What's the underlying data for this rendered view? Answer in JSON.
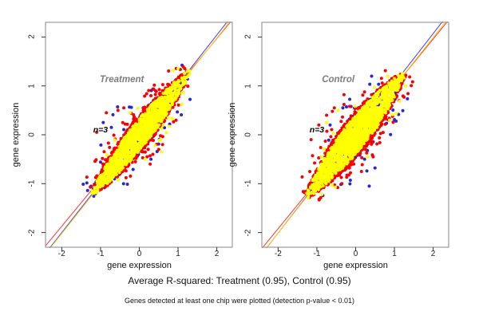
{
  "figure": {
    "captions": {
      "rsquared": "Average R-squared: Treatment (0.95), Control (0.95)",
      "footnote": "Genes detected at least one chip were plotted (detection p-value < 0.01)"
    },
    "colors": {
      "background": "#ffffff",
      "box": "#999999",
      "tick": "#333333",
      "title_gray": "#7d7d7d",
      "annotation": "#000000",
      "dot_red": "#fb0000",
      "dot_blue": "#2727d8",
      "dot_yellow": "#ffff00",
      "line_red": "#ff3232",
      "line_blue": "#3b3bff",
      "line_yellow": "#ffd400"
    }
  },
  "chart_data": [
    {
      "type": "scatter",
      "title": "Treatment",
      "title_pos": {
        "x": -0.45,
        "y": 1.08
      },
      "xlabel": "gene expression",
      "ylabel": "gene expression",
      "xlim": [
        -2.42,
        2.4
      ],
      "ylim": [
        -2.3,
        2.3
      ],
      "xticks": [
        -2,
        -1,
        0,
        1,
        2
      ],
      "yticks": [
        -2,
        -1,
        0,
        1,
        2
      ],
      "grid": false,
      "annotation": {
        "text": "n=3",
        "x": -1.0,
        "y": 0.05
      },
      "lines": [
        {
          "name": "fit-red",
          "color": "#ff3232",
          "slope": 0.96,
          "intercept": 0.05
        },
        {
          "name": "fit-blue",
          "color": "#3b3bff",
          "slope": 1.01,
          "intercept": 0.02
        },
        {
          "name": "fit-yellow",
          "color": "#ffd400",
          "slope": 1.0,
          "intercept": -0.02
        }
      ],
      "cloud": {
        "seed": 11,
        "t_min": -1.28,
        "t_max": 1.32,
        "center": 0.02,
        "taper": 1.4,
        "max_halfwidth": 0.27,
        "under_points": 300,
        "rim_points": 700,
        "core_points": 1300,
        "rim_upper_frac": 0.62,
        "outliers": {
          "red": 55,
          "blue": 20,
          "yellow": 14
        },
        "outlier_spread": {
          "red": 0.22,
          "blue": 0.28,
          "yellow": 0.18
        }
      },
      "extra_points": {
        "blue": [
          [
            -0.56,
            0.57
          ],
          [
            -0.68,
            0.41
          ],
          [
            -0.93,
            0.25
          ],
          [
            -0.99,
            -0.21
          ],
          [
            -0.47,
            -0.25
          ],
          [
            -0.37,
            -0.66
          ],
          [
            -0.16,
            -0.71
          ],
          [
            0.5,
            -0.19
          ],
          [
            0.3,
            -0.5
          ],
          [
            -0.72,
            0.15
          ]
        ],
        "red": [
          [
            0.2,
            -0.45
          ],
          [
            0.35,
            -0.4
          ],
          [
            0.5,
            -0.3
          ],
          [
            0.28,
            -0.6
          ],
          [
            0.1,
            -0.35
          ],
          [
            0.6,
            -0.2
          ],
          [
            -0.1,
            -0.55
          ],
          [
            -0.55,
            0.5
          ],
          [
            -0.4,
            0.55
          ],
          [
            0.1,
            0.55
          ],
          [
            -1.1,
            0.05
          ],
          [
            -0.85,
            0.45
          ],
          [
            0.42,
            0.9
          ],
          [
            0.3,
            0.8
          ]
        ],
        "yellow": [
          [
            0.62,
            0.2
          ],
          [
            0.75,
            0.35
          ],
          [
            0.55,
            -0.1
          ],
          [
            0.41,
            -0.22
          ],
          [
            0.58,
            -0.35
          ],
          [
            0.15,
            -0.5
          ],
          [
            0.62,
            0.36
          ]
        ]
      }
    },
    {
      "type": "scatter",
      "title": "Control",
      "title_pos": {
        "x": -0.45,
        "y": 1.08
      },
      "xlabel": "gene expression",
      "ylabel": "gene expression",
      "xlim": [
        -2.42,
        2.4
      ],
      "ylim": [
        -2.3,
        2.3
      ],
      "xticks": [
        -2,
        -1,
        0,
        1,
        2
      ],
      "yticks": [
        -2,
        -1,
        0,
        1,
        2
      ],
      "grid": false,
      "annotation": {
        "text": "n=3",
        "x": -1.0,
        "y": 0.05
      },
      "lines": [
        {
          "name": "fit-red",
          "color": "#ff3232",
          "slope": 0.97,
          "intercept": 0.02
        },
        {
          "name": "fit-blue",
          "color": "#3b3bff",
          "slope": 1.02,
          "intercept": 0.03
        },
        {
          "name": "fit-yellow",
          "color": "#ffd400",
          "slope": 1.0,
          "intercept": -0.01
        }
      ],
      "cloud": {
        "seed": 23,
        "t_min": -1.3,
        "t_max": 1.3,
        "center": 0.0,
        "taper": 1.38,
        "max_halfwidth": 0.33,
        "under_points": 300,
        "rim_points": 750,
        "core_points": 1500,
        "rim_upper_frac": 0.4,
        "outliers": {
          "red": 60,
          "blue": 22,
          "yellow": 14
        },
        "outlier_spread": {
          "red": 0.24,
          "blue": 0.3,
          "yellow": 0.18
        }
      },
      "extra_points": {
        "blue": [
          [
            0.29,
            -0.74
          ],
          [
            0.35,
            -1.05
          ],
          [
            0.5,
            -0.68
          ],
          [
            0.76,
            0.63
          ],
          [
            1.0,
            0.31
          ],
          [
            -0.12,
            0.58
          ],
          [
            -0.33,
            0.55
          ],
          [
            0.23,
            -0.5
          ],
          [
            -1.05,
            -1.15
          ]
        ],
        "red": [
          [
            -0.95,
            0.2
          ],
          [
            -0.75,
            0.4
          ],
          [
            -0.55,
            0.55
          ],
          [
            -0.3,
            0.62
          ],
          [
            -1.15,
            -0.1
          ],
          [
            0.2,
            0.55
          ],
          [
            0.15,
            -0.75
          ],
          [
            -0.05,
            -0.6
          ],
          [
            0.45,
            -0.45
          ],
          [
            0.85,
            0.3
          ],
          [
            -0.3,
            0.82
          ],
          [
            -0.6,
            0.48
          ]
        ],
        "yellow": [
          [
            -0.75,
            0.25
          ],
          [
            0.3,
            -0.45
          ],
          [
            0.55,
            0.15
          ],
          [
            -0.45,
            0.5
          ]
        ]
      }
    }
  ],
  "layout_note": "two R-style scatter panels comparing replicate gene expression; yellow core cloud with red rim and blue underlayer along the y=x diagonal"
}
